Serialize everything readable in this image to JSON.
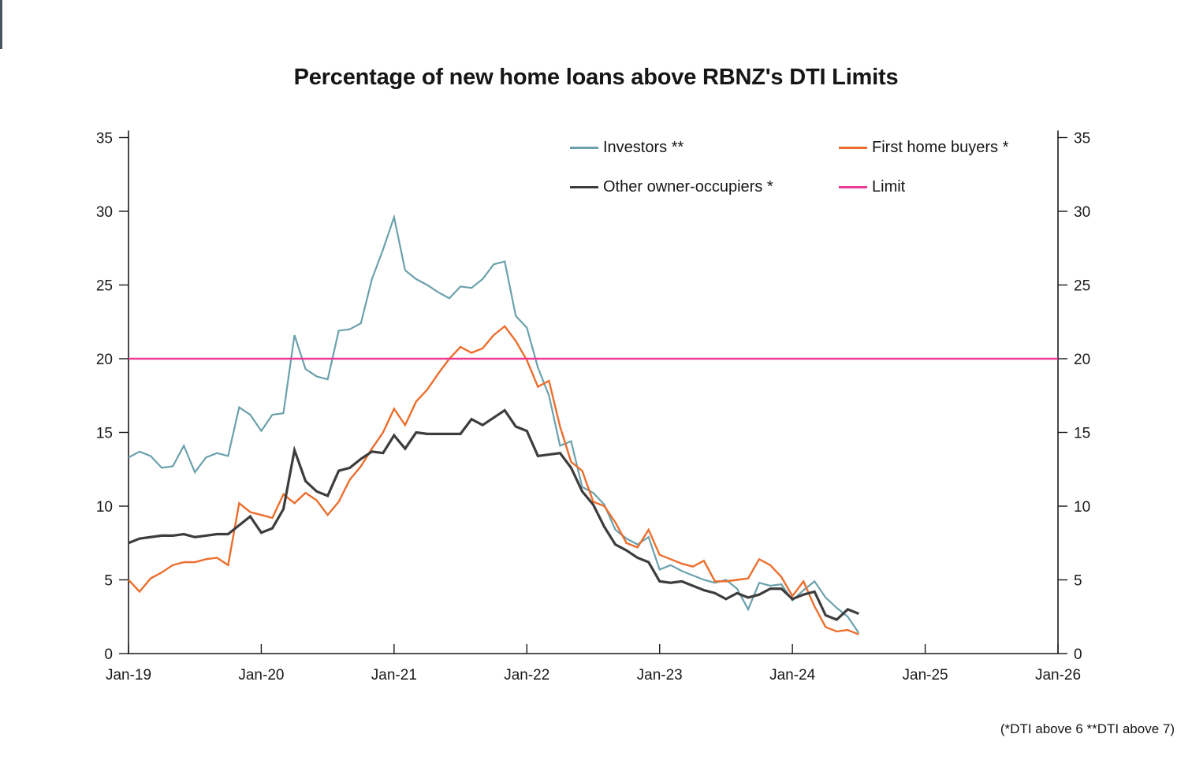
{
  "page": {
    "edge_strip_color": "#46545e",
    "background": "#ffffff"
  },
  "chart_data": {
    "type": "line",
    "title": "Percentage of new home loans above RBNZ's DTI Limits",
    "footnote": "(*DTI above 6  **DTI above 7)",
    "grid": false,
    "legend_position": "top-inside",
    "x_axis": {
      "tick_labels": [
        "Jan-19",
        "Jan-20",
        "Jan-21",
        "Jan-22",
        "Jan-23",
        "Jan-24",
        "Jan-25",
        "Jan-26"
      ],
      "months_per_tick": 12,
      "total_months": 84
    },
    "y_axis": {
      "min": 0,
      "max": 35,
      "ticks": [
        0,
        5,
        10,
        15,
        20,
        25,
        30,
        35
      ],
      "mirror_right": true
    },
    "x_months": [
      "Jan-19",
      "Feb-19",
      "Mar-19",
      "Apr-19",
      "May-19",
      "Jun-19",
      "Jul-19",
      "Aug-19",
      "Sep-19",
      "Oct-19",
      "Nov-19",
      "Dec-19",
      "Jan-20",
      "Feb-20",
      "Mar-20",
      "Apr-20",
      "May-20",
      "Jun-20",
      "Jul-20",
      "Aug-20",
      "Sep-20",
      "Oct-20",
      "Nov-20",
      "Dec-20",
      "Jan-21",
      "Feb-21",
      "Mar-21",
      "Apr-21",
      "May-21",
      "Jun-21",
      "Jul-21",
      "Aug-21",
      "Sep-21",
      "Oct-21",
      "Nov-21",
      "Dec-21",
      "Jan-22",
      "Feb-22",
      "Mar-22",
      "Apr-22",
      "May-22",
      "Jun-22",
      "Jul-22",
      "Aug-22",
      "Sep-22",
      "Oct-22",
      "Nov-22",
      "Dec-22",
      "Jan-23",
      "Feb-23",
      "Mar-23",
      "Apr-23",
      "May-23",
      "Jun-23",
      "Jul-23",
      "Aug-23",
      "Sep-23",
      "Oct-23",
      "Nov-23",
      "Dec-23",
      "Jan-24",
      "Feb-24",
      "Mar-24",
      "Apr-24",
      "May-24",
      "Jun-24",
      "Jul-24"
    ],
    "series": [
      {
        "name": "Investors **",
        "color": "#6ba1ac",
        "width": 2.2,
        "values": [
          13.3,
          13.7,
          13.4,
          12.6,
          12.7,
          14.1,
          12.3,
          13.3,
          13.6,
          13.4,
          16.7,
          16.2,
          15.1,
          16.2,
          16.3,
          21.6,
          19.3,
          18.8,
          18.6,
          21.9,
          22.0,
          22.4,
          25.4,
          27.4,
          29.6,
          26.0,
          25.4,
          25.0,
          24.5,
          24.1,
          24.9,
          24.8,
          25.4,
          26.4,
          26.6,
          22.9,
          22.1,
          19.4,
          17.5,
          14.1,
          14.4,
          11.3,
          10.9,
          10.1,
          8.4,
          7.8,
          7.4,
          7.9,
          5.7,
          6.0,
          5.6,
          5.3,
          5.0,
          4.8,
          5.0,
          4.4,
          3.0,
          4.8,
          4.6,
          4.7,
          3.6,
          4.3,
          4.9,
          3.8,
          3.1,
          2.5,
          1.4
        ]
      },
      {
        "name": "First home buyers *",
        "color": "#ec6e2d",
        "width": 2.4,
        "values": [
          5.0,
          4.2,
          5.1,
          5.5,
          6.0,
          6.2,
          6.2,
          6.4,
          6.5,
          6.0,
          10.2,
          9.6,
          9.4,
          9.2,
          10.8,
          10.2,
          10.9,
          10.4,
          9.4,
          10.3,
          11.8,
          12.7,
          13.9,
          15.0,
          16.6,
          15.5,
          17.1,
          17.9,
          19.0,
          20.0,
          20.8,
          20.4,
          20.7,
          21.6,
          22.2,
          21.2,
          19.9,
          18.1,
          18.5,
          15.4,
          13.0,
          12.4,
          10.3,
          10.0,
          8.9,
          7.5,
          7.2,
          8.4,
          6.7,
          6.4,
          6.1,
          5.9,
          6.3,
          4.9,
          4.9,
          5.0,
          5.1,
          6.4,
          6.0,
          5.2,
          3.9,
          4.9,
          3.2,
          1.8,
          1.5,
          1.6,
          1.3
        ]
      },
      {
        "name": "Other owner-occupiers *",
        "color": "#3d3d3d",
        "width": 3.2,
        "values": [
          7.5,
          7.8,
          7.9,
          8.0,
          8.0,
          8.1,
          7.9,
          8.0,
          8.1,
          8.1,
          8.7,
          9.3,
          8.2,
          8.5,
          9.8,
          13.8,
          11.7,
          11.0,
          10.7,
          12.4,
          12.6,
          13.2,
          13.7,
          13.6,
          14.8,
          13.9,
          15.0,
          14.9,
          14.9,
          14.9,
          14.9,
          15.9,
          15.5,
          16.0,
          16.5,
          15.4,
          15.1,
          13.4,
          13.5,
          13.6,
          12.6,
          11.0,
          10.1,
          8.6,
          7.4,
          7.0,
          6.5,
          6.2,
          4.9,
          4.8,
          4.9,
          4.6,
          4.3,
          4.1,
          3.7,
          4.1,
          3.8,
          4.0,
          4.4,
          4.4,
          3.7,
          4.0,
          4.2,
          2.6,
          2.3,
          3.0,
          2.7
        ]
      },
      {
        "name": "Limit",
        "color": "#ee3a95",
        "width": 2.4,
        "hline": 20
      }
    ],
    "legend": [
      {
        "label": "Investors **",
        "color": "#6ba1ac"
      },
      {
        "label": "First home buyers *",
        "color": "#ec6e2d"
      },
      {
        "label": "Other owner-occupiers *",
        "color": "#3d3d3d"
      },
      {
        "label": "Limit",
        "color": "#ee3a95"
      }
    ]
  }
}
